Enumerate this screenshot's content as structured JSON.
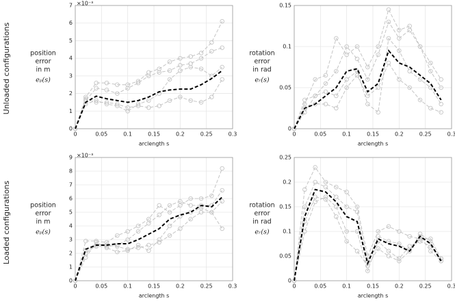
{
  "row_labels": [
    "Unloaded configurations",
    "Loaded configurations"
  ],
  "chart_data": [
    {
      "type": "line",
      "xlabel": "arclength s",
      "ylabel": [
        "position",
        "error",
        "in m",
        "eₚ(s)"
      ],
      "scale_label": "×10⁻³",
      "xlim": [
        0,
        0.3
      ],
      "xticks": [
        0,
        0.05,
        0.1,
        0.15,
        0.2,
        0.25,
        0.3
      ],
      "ylim": [
        0,
        7
      ],
      "yticks": [
        0,
        1,
        2,
        3,
        4,
        5,
        6,
        7
      ],
      "grid": true,
      "x": [
        0,
        0.02,
        0.04,
        0.06,
        0.08,
        0.1,
        0.12,
        0.14,
        0.16,
        0.18,
        0.2,
        0.22,
        0.24,
        0.26,
        0.28
      ],
      "series": [
        {
          "color": "#c4c4c4",
          "style": "dashed",
          "marker": true,
          "values": [
            0,
            1.8,
            2.6,
            2.6,
            2.5,
            2.5,
            2.7,
            3.2,
            3.4,
            3.8,
            4.0,
            4.1,
            4.3,
            4.9,
            6.1
          ]
        },
        {
          "color": "#c4c4c4",
          "style": "dashed",
          "marker": true,
          "values": [
            0,
            1.6,
            2.3,
            2.2,
            2.0,
            2.3,
            2.6,
            3.0,
            3.2,
            3.3,
            3.6,
            3.7,
            4.0,
            4.4,
            4.6
          ]
        },
        {
          "color": "#c4c4c4",
          "style": "dashed",
          "marker": true,
          "values": [
            0,
            1.4,
            1.6,
            1.4,
            1.3,
            1.0,
            1.4,
            1.6,
            2.0,
            2.8,
            3.3,
            3.5,
            3.4,
            3.0,
            3.5
          ]
        },
        {
          "color": "#c4c4c4",
          "style": "dashed",
          "marker": true,
          "values": [
            0,
            1.7,
            1.5,
            1.5,
            1.4,
            1.2,
            1.3,
            1.2,
            1.3,
            1.6,
            1.8,
            1.6,
            1.5,
            1.8,
            2.8
          ]
        },
        {
          "color": "#000000",
          "style": "bold-dashed",
          "marker": false,
          "values": [
            0,
            1.5,
            1.85,
            1.7,
            1.6,
            1.5,
            1.6,
            1.8,
            2.1,
            2.2,
            2.25,
            2.25,
            2.5,
            2.85,
            3.3
          ]
        }
      ]
    },
    {
      "type": "line",
      "xlabel": "arclength s",
      "ylabel": [
        "rotation",
        "error",
        "in rad",
        "eᵣ(s)"
      ],
      "xlim": [
        0,
        0.3
      ],
      "xticks": [
        0,
        0.05,
        0.1,
        0.15,
        0.2,
        0.25,
        0.3
      ],
      "ylim": [
        0,
        0.15
      ],
      "yticks": [
        0,
        0.05,
        0.1,
        0.15
      ],
      "grid": true,
      "x": [
        0,
        0.02,
        0.04,
        0.06,
        0.08,
        0.1,
        0.12,
        0.14,
        0.16,
        0.18,
        0.2,
        0.22,
        0.24,
        0.26,
        0.28
      ],
      "series": [
        {
          "color": "#c4c4c4",
          "style": "dashed",
          "marker": true,
          "values": [
            0,
            0.03,
            0.06,
            0.065,
            0.11,
            0.09,
            0.1,
            0.075,
            0.1,
            0.145,
            0.12,
            0.125,
            0.1,
            0.07,
            0.05
          ]
        },
        {
          "color": "#c4c4c4",
          "style": "dashed",
          "marker": true,
          "values": [
            0,
            0.035,
            0.04,
            0.055,
            0.07,
            0.1,
            0.085,
            0.06,
            0.09,
            0.13,
            0.11,
            0.12,
            0.1,
            0.08,
            0.06
          ]
        },
        {
          "color": "#c4c4c4",
          "style": "dashed",
          "marker": true,
          "values": [
            0,
            0.02,
            0.04,
            0.045,
            0.04,
            0.06,
            0.07,
            0.03,
            0.02,
            0.11,
            0.095,
            0.07,
            0.06,
            0.05,
            0.03
          ]
        },
        {
          "color": "#c4c4c4",
          "style": "dashed",
          "marker": true,
          "values": [
            0,
            0.025,
            0.03,
            0.03,
            0.025,
            0.05,
            0.065,
            0.04,
            0.05,
            0.08,
            0.06,
            0.05,
            0.035,
            0.025,
            0.02
          ]
        },
        {
          "color": "#000000",
          "style": "bold-dashed",
          "marker": false,
          "values": [
            0,
            0.025,
            0.03,
            0.04,
            0.05,
            0.07,
            0.073,
            0.045,
            0.055,
            0.095,
            0.08,
            0.075,
            0.065,
            0.055,
            0.035
          ]
        }
      ]
    },
    {
      "type": "line",
      "xlabel": "arclength s",
      "ylabel": [
        "position",
        "error",
        "in m",
        "eₚ(s)"
      ],
      "scale_label": "×10⁻³",
      "xlim": [
        0,
        0.3
      ],
      "xticks": [
        0,
        0.05,
        0.1,
        0.15,
        0.2,
        0.25,
        0.3
      ],
      "ylim": [
        0,
        9
      ],
      "yticks": [
        0,
        1,
        2,
        3,
        4,
        5,
        6,
        7,
        8,
        9
      ],
      "grid": true,
      "x": [
        0,
        0.02,
        0.04,
        0.06,
        0.08,
        0.1,
        0.12,
        0.14,
        0.16,
        0.18,
        0.2,
        0.22,
        0.24,
        0.26,
        0.28
      ],
      "series": [
        {
          "color": "#c4c4c4",
          "style": "dashed",
          "marker": true,
          "values": [
            0,
            2.9,
            2.9,
            2.8,
            3.3,
            3.6,
            4.0,
            4.5,
            5.5,
            5.0,
            5.5,
            6.0,
            6.0,
            6.2,
            8.2
          ]
        },
        {
          "color": "#c4c4c4",
          "style": "dashed",
          "marker": true,
          "values": [
            0,
            2.2,
            2.5,
            2.5,
            2.6,
            3.0,
            3.6,
            4.2,
            4.8,
            5.5,
            5.8,
            5.5,
            5.5,
            5.5,
            6.6
          ]
        },
        {
          "color": "#c4c4c4",
          "style": "dashed",
          "marker": true,
          "values": [
            0,
            1.7,
            2.8,
            2.4,
            2.1,
            2.2,
            2.6,
            2.2,
            3.0,
            4.0,
            4.7,
            5.0,
            5.3,
            5.0,
            5.8
          ]
        },
        {
          "color": "#c4c4c4",
          "style": "dashed",
          "marker": true,
          "values": [
            0,
            2.0,
            2.6,
            2.6,
            2.5,
            2.3,
            2.4,
            2.6,
            2.8,
            3.3,
            3.8,
            4.5,
            5.0,
            5.0,
            3.8
          ]
        },
        {
          "color": "#000000",
          "style": "bold-dashed",
          "marker": false,
          "values": [
            0,
            2.3,
            2.6,
            2.6,
            2.7,
            2.7,
            3.0,
            3.4,
            3.8,
            4.5,
            4.8,
            5.0,
            5.5,
            5.4,
            6.1
          ]
        }
      ]
    },
    {
      "type": "line",
      "xlabel": "arclength s",
      "ylabel": [
        "rotation",
        "error",
        "in rad",
        "eᵣ(s)"
      ],
      "xlim": [
        0,
        0.3
      ],
      "xticks": [
        0,
        0.05,
        0.1,
        0.15,
        0.2,
        0.25,
        0.3
      ],
      "ylim": [
        0,
        0.25
      ],
      "yticks": [
        0,
        0.05,
        0.1,
        0.15,
        0.2,
        0.25
      ],
      "grid": true,
      "x": [
        0,
        0.02,
        0.04,
        0.06,
        0.08,
        0.1,
        0.12,
        0.14,
        0.16,
        0.18,
        0.2,
        0.22,
        0.24,
        0.26,
        0.28
      ],
      "series": [
        {
          "color": "#c4c4c4",
          "style": "dashed",
          "marker": true,
          "values": [
            0,
            0.185,
            0.23,
            0.2,
            0.19,
            0.18,
            0.15,
            0.05,
            0.1,
            0.11,
            0.1,
            0.09,
            0.085,
            0.085,
            0.045
          ]
        },
        {
          "color": "#c4c4c4",
          "style": "dashed",
          "marker": true,
          "values": [
            0,
            0.15,
            0.2,
            0.19,
            0.17,
            0.15,
            0.14,
            0.04,
            0.09,
            0.08,
            0.075,
            0.06,
            0.095,
            0.08,
            0.04
          ]
        },
        {
          "color": "#c4c4c4",
          "style": "dashed",
          "marker": true,
          "values": [
            0,
            0.1,
            0.16,
            0.17,
            0.15,
            0.1,
            0.1,
            0.02,
            0.08,
            0.06,
            0.045,
            0.07,
            0.08,
            0.07,
            0.045
          ]
        },
        {
          "color": "#c4c4c4",
          "style": "dashed",
          "marker": true,
          "values": [
            0,
            0.12,
            0.17,
            0.165,
            0.13,
            0.08,
            0.06,
            0.03,
            0.065,
            0.05,
            0.04,
            0.06,
            0.09,
            0.06,
            0.04
          ]
        },
        {
          "color": "#000000",
          "style": "bold-dashed",
          "marker": false,
          "values": [
            0,
            0.13,
            0.185,
            0.18,
            0.16,
            0.13,
            0.12,
            0.035,
            0.085,
            0.075,
            0.07,
            0.06,
            0.09,
            0.075,
            0.04
          ]
        }
      ]
    }
  ]
}
